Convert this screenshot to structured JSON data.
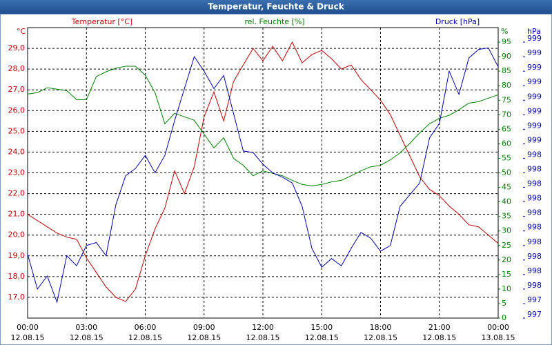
{
  "chart_data": {
    "type": "line",
    "title": "Temperatur, Feuchte & Druck",
    "x": [
      0,
      0.5,
      1,
      1.5,
      2,
      2.5,
      3,
      3.5,
      4,
      4.5,
      5,
      5.5,
      6,
      6.5,
      7,
      7.5,
      8,
      8.5,
      9,
      9.5,
      10,
      10.5,
      11,
      11.5,
      12,
      12.5,
      13,
      13.5,
      14,
      14.5,
      15,
      15.5,
      16,
      16.5,
      17,
      17.5,
      18,
      18.5,
      19,
      19.5,
      20,
      20.5,
      21,
      21.5,
      22,
      22.5,
      23,
      23.5,
      24
    ],
    "xlim": [
      0,
      24
    ],
    "xticks": [
      {
        "value": 0,
        "label": "00:00"
      },
      {
        "value": 3,
        "label": "03:00"
      },
      {
        "value": 6,
        "label": "06:00"
      },
      {
        "value": 9,
        "label": "09:00"
      },
      {
        "value": 12,
        "label": "12:00"
      },
      {
        "value": 15,
        "label": "15:00"
      },
      {
        "value": 18,
        "label": "18:00"
      },
      {
        "value": 21,
        "label": "21:00"
      },
      {
        "value": 24,
        "label": "00:00"
      }
    ],
    "xtick_dates": [
      "12.08.15",
      "12.08.15",
      "12.08.15",
      "12.08.15",
      "12.08.15",
      "12.08.15",
      "12.08.15",
      "12.08.15",
      "13.08.15"
    ],
    "y_unit": "°C",
    "y2_unit": "%",
    "y3_unit": "hPa",
    "ylim": [
      16,
      30
    ],
    "yticks": [
      {
        "value": 17,
        "label": "17,0"
      },
      {
        "value": 18,
        "label": "18,0"
      },
      {
        "value": 19,
        "label": "19,0"
      },
      {
        "value": 20,
        "label": "20,0"
      },
      {
        "value": 21,
        "label": "21,0"
      },
      {
        "value": 22,
        "label": "22,0"
      },
      {
        "value": 23,
        "label": "23,0"
      },
      {
        "value": 24,
        "label": "24,0"
      },
      {
        "value": 25,
        "label": "25,0"
      },
      {
        "value": 26,
        "label": "26,0"
      },
      {
        "value": 27,
        "label": "27,0"
      },
      {
        "value": 28,
        "label": "28,0"
      },
      {
        "value": 29,
        "label": "29,0"
      }
    ],
    "y2lim": [
      0,
      100
    ],
    "y2ticks": [
      0,
      5,
      10,
      15,
      20,
      25,
      30,
      35,
      40,
      45,
      50,
      55,
      60,
      65,
      70,
      75,
      80,
      85,
      90,
      95
    ],
    "y3lim": [
      997.3,
      999.3
    ],
    "y3ticks": [
      {
        "value": 997.3,
        "label": "997"
      },
      {
        "value": 997.4,
        "label": "997"
      },
      {
        "value": 997.5,
        "label": "998"
      },
      {
        "value": 997.6,
        "label": "998"
      },
      {
        "value": 997.7,
        "label": "998"
      },
      {
        "value": 997.8,
        "label": "998"
      },
      {
        "value": 997.9,
        "label": "998"
      },
      {
        "value": 998.0,
        "label": "998"
      },
      {
        "value": 998.1,
        "label": "998"
      },
      {
        "value": 998.2,
        "label": "998"
      },
      {
        "value": 998.3,
        "label": "998"
      },
      {
        "value": 998.4,
        "label": "998"
      },
      {
        "value": 998.5,
        "label": "999"
      },
      {
        "value": 998.6,
        "label": "999"
      },
      {
        "value": 998.7,
        "label": "999"
      },
      {
        "value": 998.8,
        "label": "999"
      },
      {
        "value": 998.9,
        "label": "999"
      },
      {
        "value": 999.0,
        "label": "999"
      },
      {
        "value": 999.1,
        "label": "999"
      },
      {
        "value": 999.2,
        "label": "999"
      }
    ],
    "grid": true,
    "series": [
      {
        "name": "Temperatur [°C]",
        "color": "#c00000",
        "axis": "y",
        "values": [
          21.0,
          20.7,
          20.4,
          20.1,
          19.9,
          19.8,
          18.9,
          18.2,
          17.5,
          17.0,
          16.8,
          17.4,
          19.0,
          20.3,
          21.3,
          23.1,
          22.0,
          23.3,
          25.7,
          26.9,
          25.5,
          27.4,
          28.2,
          29.0,
          28.4,
          29.1,
          28.4,
          29.3,
          28.3,
          28.7,
          28.9,
          28.5,
          28.0,
          28.2,
          27.5,
          27.0,
          26.5,
          25.8,
          24.8,
          23.8,
          22.8,
          22.2,
          21.9,
          21.4,
          21.0,
          20.5,
          20.4,
          20.0,
          19.6
        ]
      },
      {
        "name": "rel. Feuchte [%]",
        "color": "#008000",
        "axis": "y2",
        "values": [
          77.1,
          77.6,
          79.3,
          78.8,
          78.3,
          75.2,
          75.2,
          83.1,
          84.8,
          86.0,
          86.7,
          86.7,
          83.6,
          77.6,
          66.9,
          70.5,
          69.3,
          68.1,
          63.3,
          58.6,
          62.1,
          55.0,
          52.6,
          49.0,
          50.7,
          49.8,
          49.0,
          47.4,
          46.0,
          45.5,
          46.0,
          46.9,
          47.4,
          49.0,
          50.7,
          52.1,
          52.6,
          54.5,
          56.9,
          60.2,
          63.8,
          66.9,
          68.8,
          69.8,
          71.7,
          74.0,
          74.5,
          75.7,
          76.9
        ]
      },
      {
        "name": "Druck [hPa]",
        "color": "#0000b0",
        "axis": "y3",
        "values": [
          997.74,
          997.5,
          997.59,
          997.41,
          997.73,
          997.66,
          997.8,
          997.82,
          997.73,
          998.08,
          998.28,
          998.33,
          998.42,
          998.3,
          998.42,
          998.66,
          998.88,
          999.1,
          999.0,
          998.88,
          998.97,
          998.71,
          998.45,
          998.44,
          998.36,
          998.3,
          998.27,
          998.23,
          998.07,
          997.78,
          997.65,
          997.71,
          997.66,
          997.78,
          997.89,
          997.85,
          997.76,
          997.8,
          998.07,
          998.15,
          998.23,
          998.54,
          998.64,
          999.0,
          998.84,
          999.09,
          999.15,
          999.16,
          999.03
        ]
      }
    ]
  }
}
